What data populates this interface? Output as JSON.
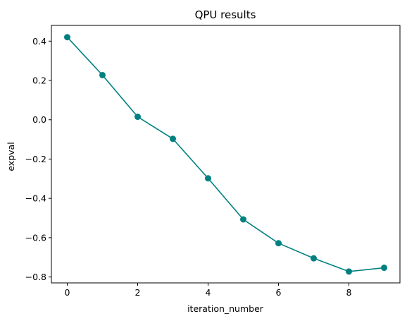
{
  "chart_data": {
    "type": "line",
    "title": "QPU results",
    "xlabel": "iteration_number",
    "ylabel": "expval",
    "xlim": [
      -0.45,
      9.45
    ],
    "ylim": [
      -0.83,
      0.48
    ],
    "xticks": [
      0,
      2,
      4,
      6,
      8
    ],
    "xtick_labels": [
      "0",
      "2",
      "4",
      "6",
      "8"
    ],
    "yticks": [
      0.4,
      0.2,
      0.0,
      -0.2,
      -0.4,
      -0.6,
      -0.8
    ],
    "ytick_labels": [
      "0.4",
      "0.2",
      "0.0",
      "−0.2",
      "−0.4",
      "−0.6",
      "−0.8"
    ],
    "grid": false,
    "series": [
      {
        "color": "#008080",
        "marker": "circle",
        "x": [
          0,
          1,
          2,
          3,
          4,
          5,
          6,
          7,
          8,
          9
        ],
        "y": [
          0.42,
          0.227,
          0.015,
          -0.097,
          -0.298,
          -0.507,
          -0.628,
          -0.705,
          -0.772,
          -0.753
        ]
      }
    ]
  }
}
